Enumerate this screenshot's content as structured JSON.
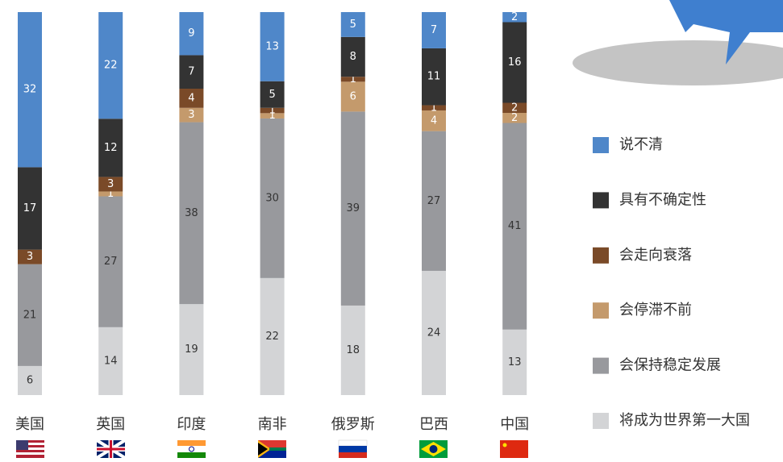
{
  "chart_data": {
    "type": "stacked-bar",
    "categories": [
      "美国",
      "英国",
      "印度",
      "南非",
      "俄罗斯",
      "巴西",
      "中国"
    ],
    "series": [
      {
        "name": "将成为世界第一大国",
        "color": "#d3d4d6",
        "values": [
          6,
          14,
          19,
          22,
          18,
          24,
          13
        ]
      },
      {
        "name": "会保持稳定发展",
        "color": "#98999d",
        "values": [
          21,
          27,
          38,
          30,
          39,
          27,
          41
        ]
      },
      {
        "name": "会停滞不前",
        "color": "#c49a6c",
        "values": [
          null,
          1,
          3,
          1,
          6,
          4,
          2
        ]
      },
      {
        "name": "会走向衰落",
        "color": "#7a4a28",
        "values": [
          3,
          3,
          4,
          1,
          1,
          1,
          2
        ]
      },
      {
        "name": "具有不确定性",
        "color": "#333333",
        "values": [
          17,
          12,
          7,
          5,
          8,
          11,
          16
        ]
      },
      {
        "name": "说不清",
        "color": "#4f87c9",
        "values": [
          32,
          22,
          9,
          13,
          5,
          7,
          2
        ]
      }
    ],
    "legend": "right"
  }
}
